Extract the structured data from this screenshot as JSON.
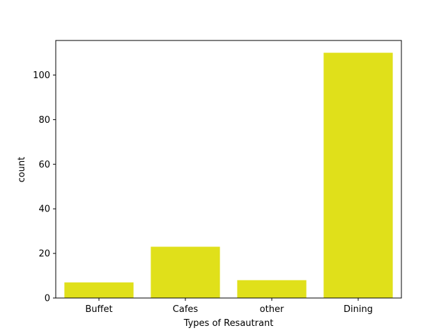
{
  "chart_data": {
    "type": "bar",
    "categories": [
      "Buffet",
      "Cafes",
      "other",
      "Dining"
    ],
    "values": [
      7,
      23,
      8,
      110
    ],
    "xlabel": "Types of Resautrant",
    "ylabel": "count",
    "ylim": [
      0,
      115.5
    ],
    "yticks": [
      0,
      20,
      40,
      60,
      80,
      100
    ],
    "bar_color": "#e0e01a",
    "grid": false,
    "legend": "none"
  }
}
